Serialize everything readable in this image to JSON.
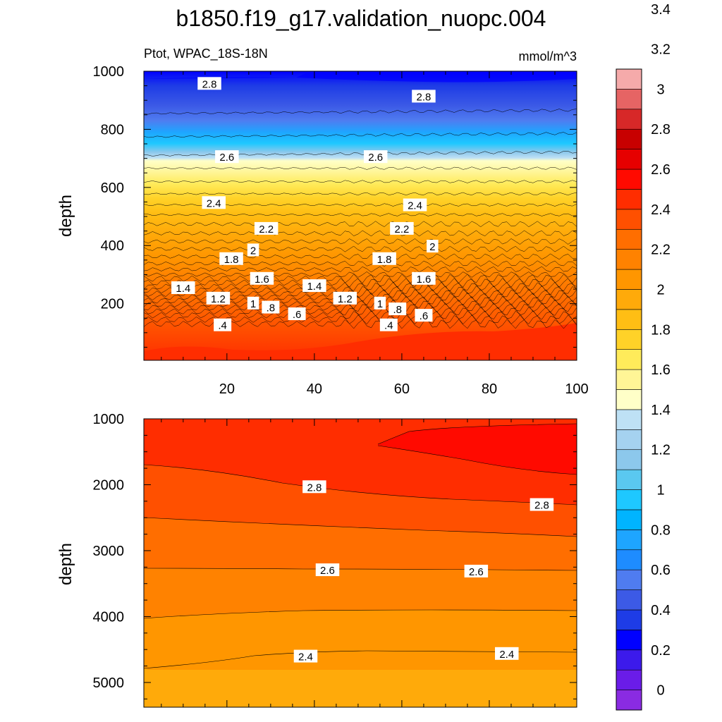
{
  "title": "b1850.f19_g17.validation_nuopc.004",
  "colorbar": {
    "colors": [
      "#8a2be2",
      "#6a1ce8",
      "#3c1aeb",
      "#0000ff",
      "#1e3ce6",
      "#3c5ae6",
      "#4f7cf0",
      "#1e8cff",
      "#1ea5ff",
      "#00b4ff",
      "#1ec8ff",
      "#5ac8f0",
      "#8cc8ec",
      "#a5d2f0",
      "#bee1f5",
      "#ffffc8",
      "#fff596",
      "#ffeb5a",
      "#ffd228",
      "#ffbe14",
      "#ffaa0a",
      "#ff9600",
      "#ff8200",
      "#ff6e00",
      "#ff5000",
      "#ff2d00",
      "#ff0a00",
      "#e60000",
      "#c80000",
      "#d72828",
      "#e66464",
      "#f5aaaa"
    ],
    "labels": [
      "0",
      "0.2",
      "0.4",
      "0.6",
      "0.8",
      "1",
      "1.2",
      "1.4",
      "1.6",
      "1.8",
      "2",
      "2.2",
      "2.4",
      "2.6",
      "2.8",
      "3",
      "3.2",
      "3.4"
    ]
  },
  "chart_data": [
    {
      "type": "heatmap",
      "subtitle_left": "Ptot, WPAC_18S-18N",
      "subtitle_right": "mmol/m^3",
      "ylabel": "depth",
      "xlabel": "",
      "xlim": [
        1,
        100
      ],
      "ylim": [
        1000,
        5
      ],
      "xticks": [
        "20",
        "40",
        "60",
        "80",
        "100"
      ],
      "yticks": [
        "200",
        "400",
        "600",
        "800",
        "1000"
      ],
      "contour_labels": [
        {
          "x": 19,
          "y": 127,
          "text": ".4"
        },
        {
          "x": 57,
          "y": 127,
          "text": ".4"
        },
        {
          "x": 30,
          "y": 188,
          "text": ".8"
        },
        {
          "x": 36,
          "y": 165,
          "text": ".6"
        },
        {
          "x": 59,
          "y": 182,
          "text": ".8"
        },
        {
          "x": 65,
          "y": 160,
          "text": ".6"
        },
        {
          "x": 26,
          "y": 202,
          "text": "1"
        },
        {
          "x": 55,
          "y": 202,
          "text": "1"
        },
        {
          "x": 18,
          "y": 219,
          "text": "1.2"
        },
        {
          "x": 47,
          "y": 219,
          "text": "1.2"
        },
        {
          "x": 10,
          "y": 255,
          "text": "1.4"
        },
        {
          "x": 40,
          "y": 262,
          "text": "1.4"
        },
        {
          "x": 28,
          "y": 287,
          "text": "1.6"
        },
        {
          "x": 65,
          "y": 287,
          "text": "1.6"
        },
        {
          "x": 21,
          "y": 355,
          "text": "1.8"
        },
        {
          "x": 56,
          "y": 355,
          "text": "1.8"
        },
        {
          "x": 26,
          "y": 385,
          "text": "2"
        },
        {
          "x": 67,
          "y": 398,
          "text": "2"
        },
        {
          "x": 29,
          "y": 459,
          "text": "2.2"
        },
        {
          "x": 60,
          "y": 459,
          "text": "2.2"
        },
        {
          "x": 17,
          "y": 548,
          "text": "2.4"
        },
        {
          "x": 63,
          "y": 540,
          "text": "2.4"
        },
        {
          "x": 20,
          "y": 706,
          "text": "2.6"
        },
        {
          "x": 54,
          "y": 706,
          "text": "2.6"
        },
        {
          "x": 16,
          "y": 958,
          "text": "2.8"
        },
        {
          "x": 65,
          "y": 914,
          "text": "2.8"
        }
      ]
    },
    {
      "type": "heatmap",
      "ylabel": "depth",
      "xlabel": "",
      "xlim": [
        1,
        100
      ],
      "ylim": [
        1000,
        5375
      ],
      "xticks": [],
      "yticks": [
        "1000",
        "2000",
        "3000",
        "4000",
        "5000"
      ],
      "contour_labels": [
        {
          "x": 40,
          "y": 2030,
          "text": "2.8"
        },
        {
          "x": 92,
          "y": 2300,
          "text": "2.8"
        },
        {
          "x": 43,
          "y": 3290,
          "text": "2.6"
        },
        {
          "x": 77,
          "y": 3310,
          "text": "2.6"
        },
        {
          "x": 38,
          "y": 4600,
          "text": "2.4"
        },
        {
          "x": 84,
          "y": 4560,
          "text": "2.4"
        }
      ]
    }
  ]
}
